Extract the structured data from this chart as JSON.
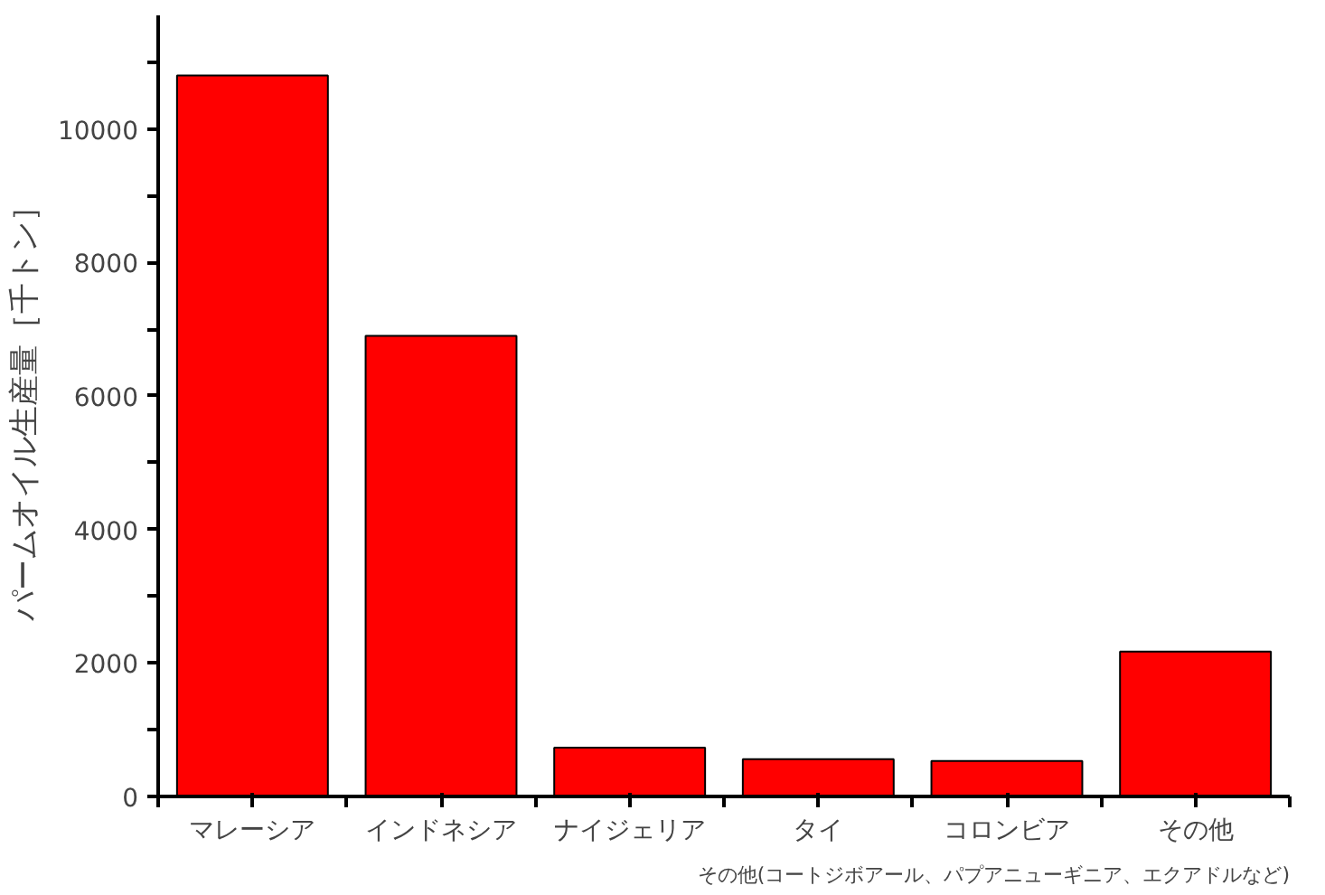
{
  "chart_data": {
    "type": "bar",
    "ylabel": "パームオイル生産量［千トン］",
    "categories": [
      "マレーシア",
      "インドネシア",
      "ナイジェリア",
      "タイ",
      "コロンビア",
      "その他"
    ],
    "values": [
      10800,
      6900,
      730,
      560,
      530,
      2170
    ],
    "color": "#ff0000",
    "ylim": [
      0,
      11700
    ],
    "yticks": [
      0,
      {
        "value": 1000,
        "label": null
      },
      2000,
      {
        "value": 3000,
        "label": null
      },
      4000,
      {
        "value": 5000,
        "label": null
      },
      6000,
      {
        "value": 7000,
        "label": null
      },
      8000,
      {
        "value": 9000,
        "label": null
      },
      10000,
      {
        "value": 11000,
        "label": null
      }
    ],
    "grid": false,
    "annotations": [
      "その他(コートジボアール、パプアニューギニア、エクアドルなど)"
    ]
  }
}
